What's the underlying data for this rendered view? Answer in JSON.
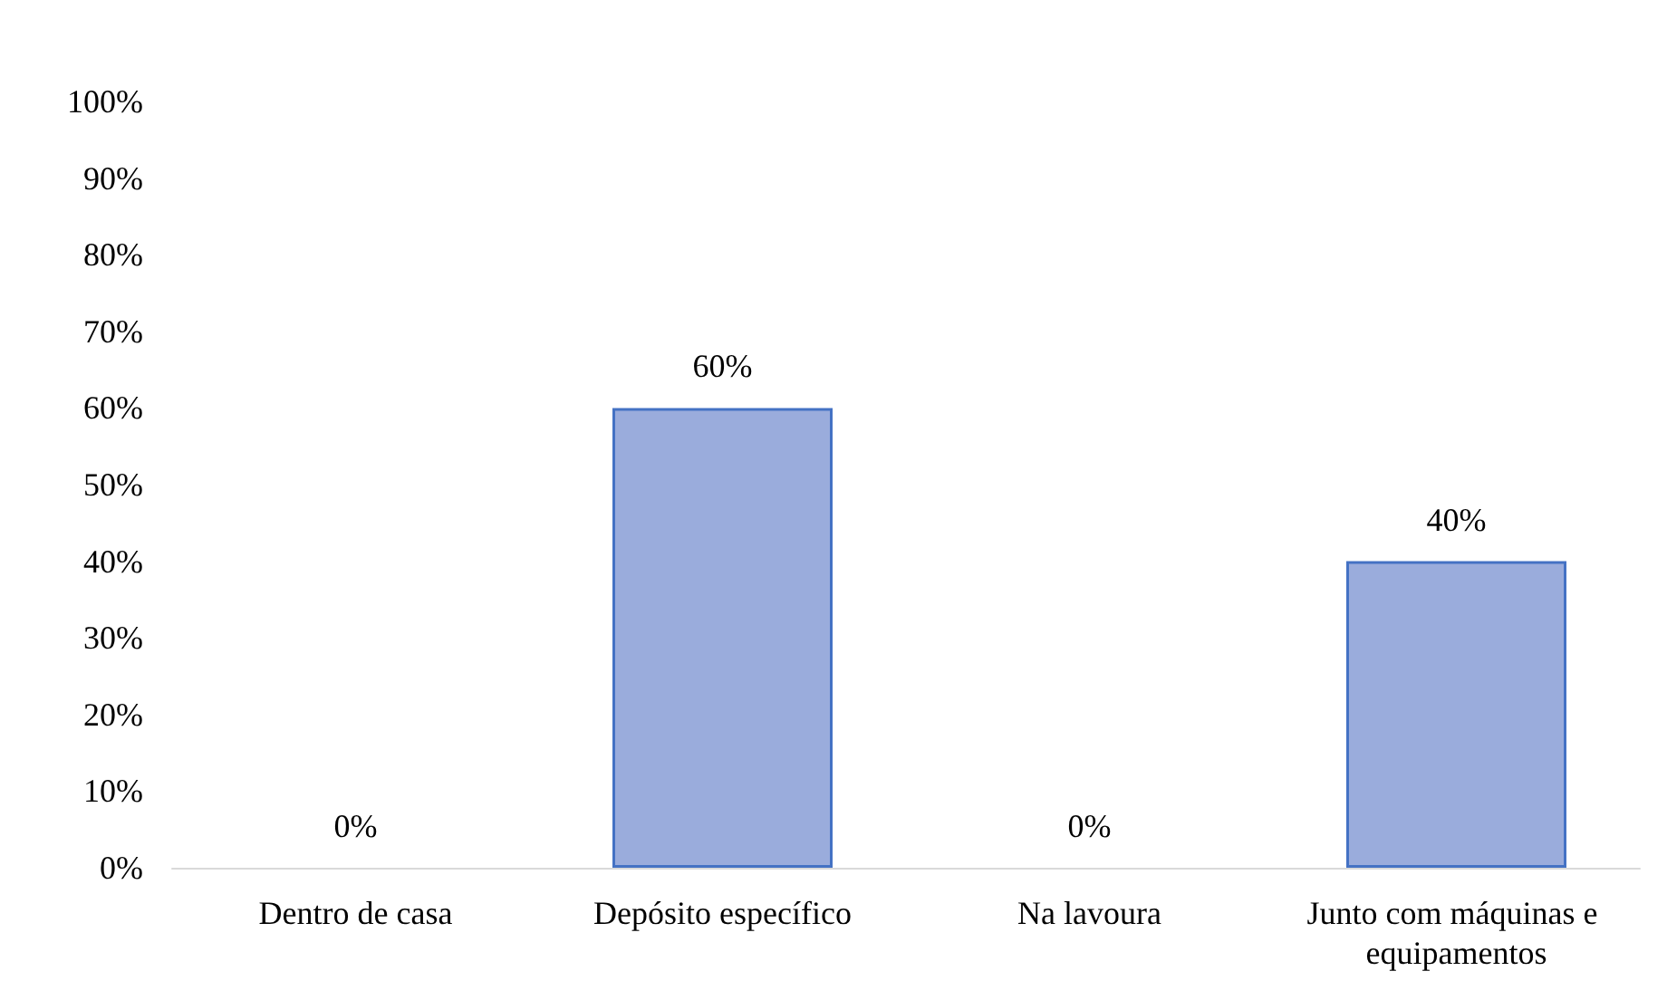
{
  "chart_data": {
    "type": "bar",
    "categories": [
      "Dentro de casa",
      "Depósito específico",
      "Na lavoura",
      "Junto com máquinas e equipamentos"
    ],
    "values": [
      0,
      60,
      0,
      40
    ],
    "value_labels": [
      "0%",
      "60%",
      "0%",
      "40%"
    ],
    "color": "#9aacdc",
    "ylim": [
      0,
      100
    ],
    "yticks": [
      {
        "value": 0,
        "label": "0%"
      },
      {
        "value": 10,
        "label": "10%"
      },
      {
        "value": 20,
        "label": "20%"
      },
      {
        "value": 30,
        "label": "30%"
      },
      {
        "value": 40,
        "label": "40%"
      },
      {
        "value": 50,
        "label": "50%"
      },
      {
        "value": 60,
        "label": "60%"
      },
      {
        "value": 70,
        "label": "70%"
      },
      {
        "value": 80,
        "label": "80%"
      },
      {
        "value": 90,
        "label": "90%"
      },
      {
        "value": 100,
        "label": "100%"
      }
    ],
    "grid": false
  }
}
